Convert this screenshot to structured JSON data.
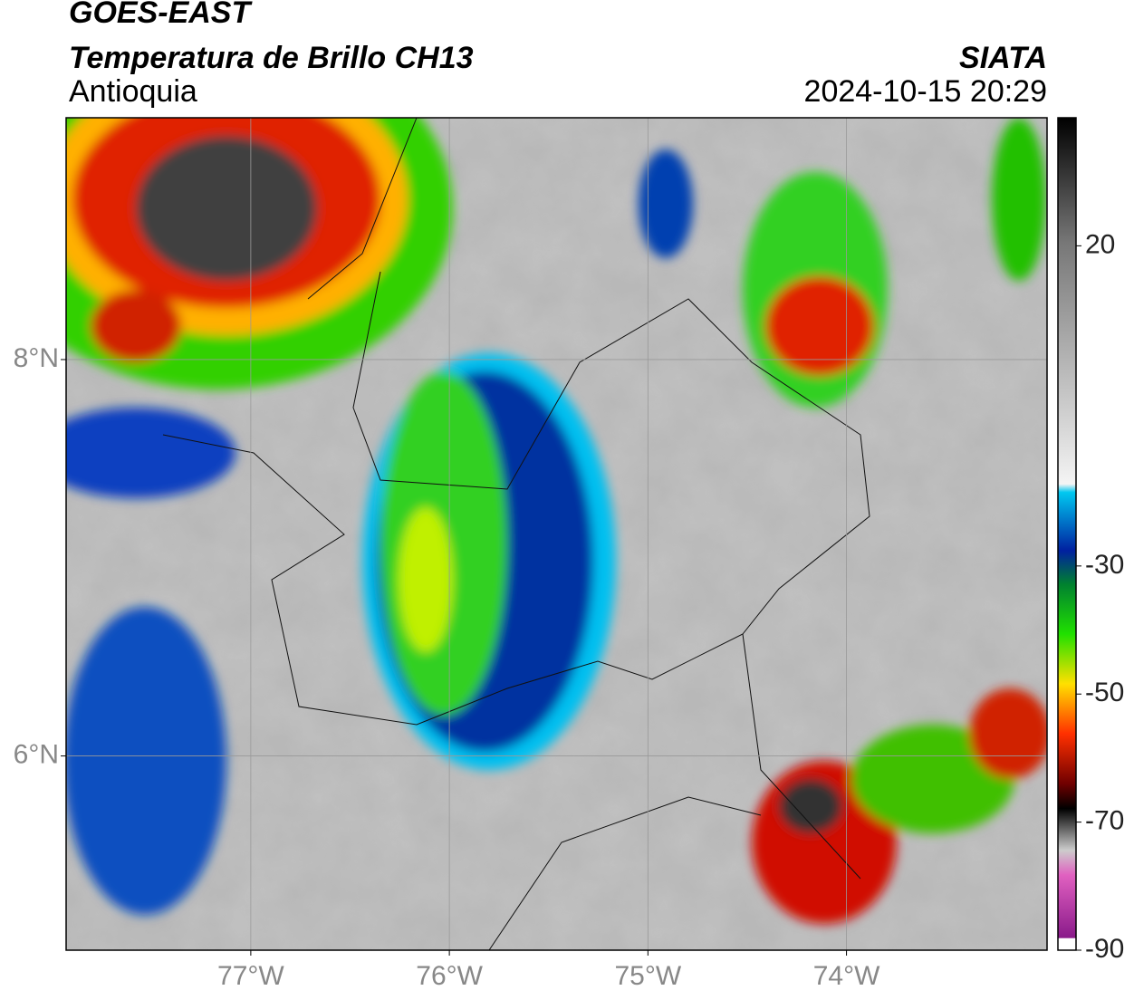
{
  "header": {
    "title": "GOES-EAST",
    "subtitle": "Temperatura de Brillo CH13",
    "region": "Antioquia",
    "source": "SIATA",
    "datetime": "2024-10-15 20:29"
  },
  "map": {
    "xlim": [
      -77.93,
      -72.99
    ],
    "ylim": [
      5.02,
      9.22
    ],
    "xticks": [
      {
        "value": -77,
        "label": "77°W"
      },
      {
        "value": -76,
        "label": "76°W"
      },
      {
        "value": -75,
        "label": "75°W"
      },
      {
        "value": -74,
        "label": "74°W"
      }
    ],
    "yticks": [
      {
        "value": 8,
        "label": "8°N"
      },
      {
        "value": 6,
        "label": "6°N"
      }
    ],
    "grid": true
  },
  "colorbar": {
    "lim": [
      -90,
      40
    ],
    "ticks": [
      20,
      -30,
      -50,
      -70,
      -90
    ]
  }
}
